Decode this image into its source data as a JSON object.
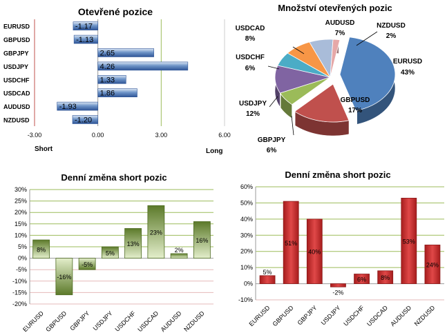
{
  "chart_data": [
    {
      "type": "bar",
      "orientation": "horizontal",
      "title": "Otevřené pozice",
      "categories": [
        "EURUSD",
        "GBPUSD",
        "GBPJPY",
        "USDJPY",
        "USDCHF",
        "USDCAD",
        "AUDUSD",
        "NZDUSD"
      ],
      "values": [
        -1.17,
        -1.13,
        2.65,
        4.26,
        1.33,
        1.86,
        -1.93,
        -1.2
      ],
      "value_labels": [
        "-1.17",
        "-1.13",
        "2.65",
        "4.26",
        "1.33",
        "1.86",
        "-1.93",
        "-1.20"
      ],
      "xlim": [
        -3,
        6
      ],
      "ticks": [
        "-3.00",
        "0.00",
        "3.00",
        "6.00"
      ],
      "tick_values": [
        -3,
        0,
        3,
        6
      ],
      "left_note": "Short",
      "right_note": "Long",
      "bar_color": "#4f81bd"
    },
    {
      "type": "pie",
      "title": "Množství otevřených pozic",
      "slices": [
        {
          "name": "EURUSD",
          "value": 43,
          "label": "43%",
          "color": "#4f81bd"
        },
        {
          "name": "GBPUSD",
          "value": 17,
          "label": "17%",
          "color": "#c0504d"
        },
        {
          "name": "GBPJPY",
          "value": 6,
          "label": "6%",
          "color": "#9bbb59"
        },
        {
          "name": "USDJPY",
          "value": 12,
          "label": "12%",
          "color": "#8064a2"
        },
        {
          "name": "USDCHF",
          "value": 6,
          "label": "6%",
          "color": "#4bacc6"
        },
        {
          "name": "USDCAD",
          "value": 8,
          "label": "8%",
          "color": "#f79646"
        },
        {
          "name": "AUDUSD",
          "value": 7,
          "label": "7%",
          "color": "#a9bcd9"
        },
        {
          "name": "NZDUSD",
          "value": 2,
          "label": "2%",
          "color": "#e6a8a8"
        }
      ]
    },
    {
      "type": "bar",
      "title": "Denní změna short pozic",
      "categories": [
        "EURUSD",
        "GBPUSD",
        "GBPJPY",
        "USDJPY",
        "USDCHF",
        "USDCAD",
        "AUDUSD",
        "NZDUSD"
      ],
      "values": [
        8,
        -16,
        -5,
        5,
        13,
        23,
        2,
        16
      ],
      "value_labels": [
        "8%",
        "-16%",
        "-5%",
        "5%",
        "13%",
        "23%",
        "2%",
        "16%"
      ],
      "ylim": [
        -20,
        30
      ],
      "yticks": [
        "-20%",
        "-15%",
        "-10%",
        "-5%",
        "0%",
        "5%",
        "10%",
        "15%",
        "20%",
        "25%",
        "30%"
      ],
      "ytick_values": [
        -20,
        -15,
        -10,
        -5,
        0,
        5,
        10,
        15,
        20,
        25,
        30
      ],
      "bar_color": "#6f8c3a"
    },
    {
      "type": "bar",
      "title": "Denní změna short pozic",
      "categories": [
        "EURUSD",
        "GBPUSD",
        "GBPJPY",
        "USDJPY",
        "USDCHF",
        "USDCAD",
        "AUDUSD",
        "NZDUSD"
      ],
      "values": [
        5,
        51,
        40,
        -2,
        6,
        8,
        53,
        24
      ],
      "value_labels": [
        "5%",
        "51%",
        "40%",
        "-2%",
        "6%",
        "8%",
        "53%",
        "24%"
      ],
      "ylim": [
        -10,
        60
      ],
      "yticks": [
        "-10%",
        "0%",
        "10%",
        "20%",
        "30%",
        "40%",
        "50%",
        "60%"
      ],
      "ytick_values": [
        -10,
        0,
        10,
        20,
        30,
        40,
        50,
        60
      ],
      "bar_color": "#d03a3a"
    }
  ]
}
